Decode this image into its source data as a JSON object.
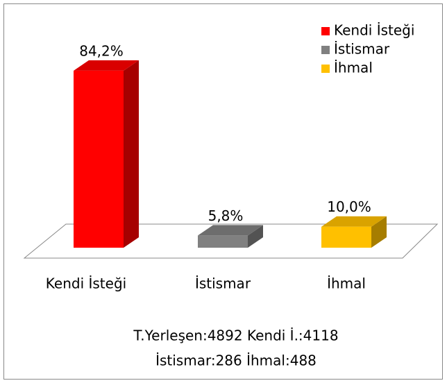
{
  "chart_data": {
    "type": "bar3d",
    "categories": [
      "Kendi İsteği",
      "İstismar",
      "İhmal"
    ],
    "values": [
      84.2,
      5.8,
      10.0
    ],
    "value_labels": [
      "84,2%",
      "5,8%",
      "10,0%"
    ],
    "colors": [
      "#ff0000",
      "#808080",
      "#ffc000"
    ],
    "ylim": [
      0,
      100
    ],
    "legend": "top-right",
    "annotations": [
      "T.Yerleşen:4892 Kendi İ.:4118",
      "İstismar:286 İhmal:488"
    ]
  }
}
